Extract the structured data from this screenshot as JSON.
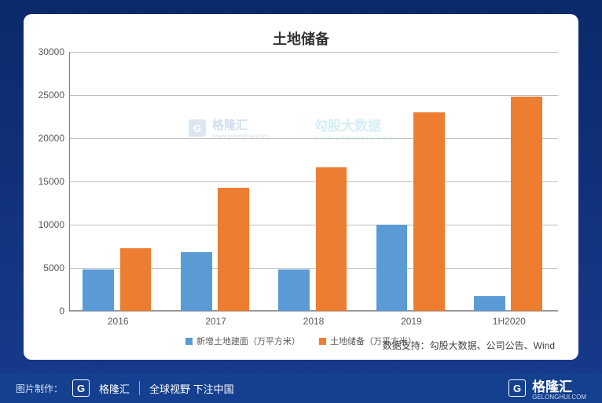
{
  "chart": {
    "type": "bar",
    "title": "土地储备",
    "title_fontsize": 18,
    "title_color": "#333333",
    "background_color": "#ffffff",
    "grid_color": "#bfbfbf",
    "axis_color": "#808080",
    "label_fontsize": 12,
    "label_color": "#595959",
    "categories": [
      "2016",
      "2017",
      "2018",
      "2019",
      "1H2020"
    ],
    "ylim": [
      0,
      30000
    ],
    "ytick_step": 5000,
    "bar_width": 0.32,
    "series": [
      {
        "name": "新增土地建面（万平方米）",
        "color": "#5b9bd5",
        "values": [
          4800,
          6800,
          4800,
          10000,
          1700
        ]
      },
      {
        "name": "土地储备（万平方米）",
        "color": "#ed7d31",
        "values": [
          7300,
          14300,
          16600,
          23000,
          24800
        ]
      }
    ],
    "legend_position": "bottom",
    "legend_fontsize": 11
  },
  "watermarks": {
    "left": {
      "glyph": "G",
      "text": "格隆汇",
      "sub": "www.gelonghui.com",
      "color": "#7aa0cf"
    },
    "right": {
      "text": "勾股大数据",
      "sub": "www.gogudata.com",
      "color": "#86d1dd"
    }
  },
  "source_line": "数据支持：勾股大数据、公司公告、Wind",
  "footer": {
    "label": "图片制作：",
    "logo_glyph": "G",
    "brand": "格隆汇",
    "slogan": "全球视野 下注中国",
    "right_brand": "格隆汇",
    "right_sub": "GELONGHUI.COM",
    "background_color": "#14408f",
    "text_color": "#ffffff"
  },
  "page_background": "#0a2a6b"
}
